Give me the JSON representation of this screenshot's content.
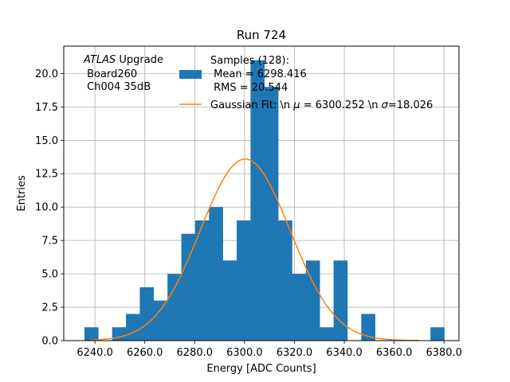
{
  "chart_data": {
    "type": "bar",
    "title": "Run 724",
    "xlabel": "Energy [ADC Counts]",
    "ylabel": "Entries",
    "xlim": [
      6227.5,
      6386
    ],
    "ylim": [
      0,
      22.05
    ],
    "grid": true,
    "x_ticks": [
      "6240.0",
      "6260.0",
      "6280.0",
      "6300.0",
      "6320.0",
      "6340.0",
      "6360.0",
      "6380.0"
    ],
    "x_tick_values": [
      6240,
      6260,
      6280,
      6300,
      6320,
      6340,
      6360,
      6380
    ],
    "y_ticks": [
      "0.0",
      "2.5",
      "5.0",
      "7.5",
      "10.0",
      "12.5",
      "15.0",
      "17.5",
      "20.0"
    ],
    "y_tick_values": [
      0,
      2.5,
      5,
      7.5,
      10,
      12.5,
      15,
      17.5,
      20
    ],
    "histogram": {
      "name": "Samples (128):",
      "color": "#1f77b4",
      "bin_edges": [
        6235.8,
        6241.35,
        6246.9,
        6252.45,
        6258.0,
        6263.55,
        6269.1,
        6274.65,
        6280.2,
        6285.75,
        6291.3,
        6296.85,
        6302.4,
        6307.95,
        6313.5,
        6319.05,
        6324.6,
        6330.15,
        6335.7,
        6341.25,
        6346.8,
        6352.35,
        6357.9,
        6363.45,
        6369.0,
        6374.55,
        6380.1
      ],
      "counts": [
        1,
        0,
        1,
        2,
        4,
        3,
        5,
        8,
        9,
        10,
        6,
        9,
        21,
        19,
        9,
        5,
        6,
        1,
        6,
        0,
        2,
        0,
        0,
        0,
        0,
        1
      ]
    },
    "fit": {
      "name": "Gaussian Fit: \\n μ = 6300.252 \\n σ=18.026",
      "color": "#ff7f0e",
      "mu": 6300.252,
      "sigma": 18.026,
      "peak": 13.6,
      "x_range": [
        6238,
        6370
      ]
    },
    "legend_position": "top-right",
    "legend": {
      "samples_lines": [
        "Samples (128):",
        " Mean = 6298.416",
        " RMS = 20.544"
      ],
      "fit_label_prefix": "Gaussian Fit: \\n ",
      "fit_mu_symbol": "μ",
      "fit_mu_text": " = 6300.252 \\n ",
      "fit_sigma_symbol": "σ",
      "fit_sigma_text": "=18.026"
    },
    "annotation": {
      "atlas_italic": "ATLAS",
      "atlas_rest": " Upgrade",
      "line2": " Board260",
      "line3": " Ch004 35dB"
    }
  }
}
